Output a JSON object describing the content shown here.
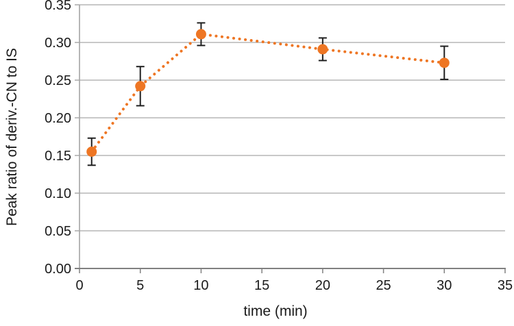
{
  "figure": {
    "background_color": "#ffffff"
  },
  "chart_data": {
    "type": "line",
    "title": "",
    "xlabel": "time (min)",
    "ylabel": "Peak ratio of deriv.-CN to IS",
    "x": [
      1,
      5,
      10,
      20,
      30
    ],
    "y": [
      0.155,
      0.242,
      0.311,
      0.291,
      0.273
    ],
    "y_err": [
      0.018,
      0.026,
      0.015,
      0.015,
      0.022
    ],
    "xlim": [
      0,
      35
    ],
    "ylim": [
      0,
      0.35
    ],
    "x_ticks": [
      0,
      5,
      10,
      15,
      20,
      25,
      30,
      35
    ],
    "x_tick_labels": [
      "0",
      "5",
      "10",
      "15",
      "20",
      "25",
      "30",
      "35"
    ],
    "y_ticks": [
      0,
      0.05,
      0.1,
      0.15,
      0.2,
      0.25,
      0.3,
      0.35
    ],
    "y_tick_labels": [
      "0.00",
      "0.05",
      "0.10",
      "0.15",
      "0.20",
      "0.25",
      "0.30",
      "0.35"
    ],
    "grid": "horizontal",
    "legend": "none",
    "line_style": "dotted",
    "marker": "circle",
    "style": {
      "marker_color": "#ee7624",
      "line_color": "#ee7624",
      "error_bar_color": "#1f1f1f",
      "gridline_color": "#a8a8a8",
      "axis_color": "#808080",
      "tick_label_color": "#1a1a1a"
    }
  }
}
